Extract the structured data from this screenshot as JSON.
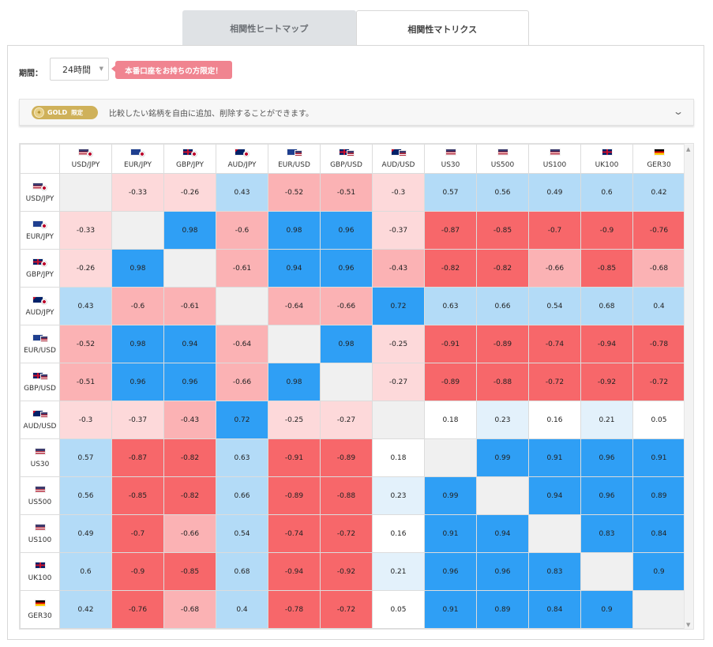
{
  "tabs": [
    {
      "label": "相関性ヒートマップ",
      "active": false
    },
    {
      "label": "相関性マトリクス",
      "active": true
    }
  ],
  "period": {
    "label": "期間：",
    "value": "24時間"
  },
  "promo": {
    "label": "本番口座をお持ちの方限定！"
  },
  "gold": {
    "badge": "GOLD",
    "limited": "限定",
    "text": "比較したい銘柄を自由に追加、削除することができます。"
  },
  "colors": {
    "strong_positive": "#2f9ff5",
    "weak_positive": "#b3dbf7",
    "very_weak_positive": "#e3f1fb",
    "neutral": "#ffffff",
    "weak_negative": "#fdd9da",
    "mid_negative": "#fbb2b4",
    "strong_negative": "#f7676a",
    "diagonal": "#f0f0f0"
  },
  "instruments": [
    {
      "label": "USD/JPY",
      "flag": "us-jp"
    },
    {
      "label": "EUR/JPY",
      "flag": "eu-jp"
    },
    {
      "label": "GBP/JPY",
      "flag": "gb-jp"
    },
    {
      "label": "AUD/JPY",
      "flag": "au-jp"
    },
    {
      "label": "EUR/USD",
      "flag": "eu-us"
    },
    {
      "label": "GBP/USD",
      "flag": "gb-us"
    },
    {
      "label": "AUD/USD",
      "flag": "au-us"
    },
    {
      "label": "US30",
      "flag": "us-index"
    },
    {
      "label": "US500",
      "flag": "us-index"
    },
    {
      "label": "US100",
      "flag": "us-index"
    },
    {
      "label": "UK100",
      "flag": "gb-index"
    },
    {
      "label": "GER30",
      "flag": "de-index"
    }
  ],
  "matrix": [
    [
      null,
      "-0.33",
      "-0.26",
      "0.43",
      "-0.52",
      "-0.51",
      "-0.3",
      "0.57",
      "0.56",
      "0.49",
      "0.6",
      "0.42"
    ],
    [
      "-0.33",
      null,
      "0.98",
      "-0.6",
      "0.98",
      "0.96",
      "-0.37",
      "-0.87",
      "-0.85",
      "-0.7",
      "-0.9",
      "-0.76"
    ],
    [
      "-0.26",
      "0.98",
      null,
      "-0.61",
      "0.94",
      "0.96",
      "-0.43",
      "-0.82",
      "-0.82",
      "-0.66",
      "-0.85",
      "-0.68"
    ],
    [
      "0.43",
      "-0.6",
      "-0.61",
      null,
      "-0.64",
      "-0.66",
      "0.72",
      "0.63",
      "0.66",
      "0.54",
      "0.68",
      "0.4"
    ],
    [
      "-0.52",
      "0.98",
      "0.94",
      "-0.64",
      null,
      "0.98",
      "-0.25",
      "-0.91",
      "-0.89",
      "-0.74",
      "-0.94",
      "-0.78"
    ],
    [
      "-0.51",
      "0.96",
      "0.96",
      "-0.66",
      "0.98",
      null,
      "-0.27",
      "-0.89",
      "-0.88",
      "-0.72",
      "-0.92",
      "-0.72"
    ],
    [
      "-0.3",
      "-0.37",
      "-0.43",
      "0.72",
      "-0.25",
      "-0.27",
      null,
      "0.18",
      "0.23",
      "0.16",
      "0.21",
      "0.05"
    ],
    [
      "0.57",
      "-0.87",
      "-0.82",
      "0.63",
      "-0.91",
      "-0.89",
      "0.18",
      null,
      "0.99",
      "0.91",
      "0.96",
      "0.91"
    ],
    [
      "0.56",
      "-0.85",
      "-0.82",
      "0.66",
      "-0.89",
      "-0.88",
      "0.23",
      "0.99",
      null,
      "0.94",
      "0.96",
      "0.89"
    ],
    [
      "0.49",
      "-0.7",
      "-0.66",
      "0.54",
      "-0.74",
      "-0.72",
      "0.16",
      "0.91",
      "0.94",
      null,
      "0.83",
      "0.84"
    ],
    [
      "0.6",
      "-0.9",
      "-0.85",
      "0.68",
      "-0.94",
      "-0.92",
      "0.21",
      "0.96",
      "0.96",
      "0.83",
      null,
      "0.9"
    ],
    [
      "0.42",
      "-0.76",
      "-0.68",
      "0.4",
      "-0.78",
      "-0.72",
      "0.05",
      "0.91",
      "0.89",
      "0.84",
      "0.9",
      null
    ]
  ]
}
